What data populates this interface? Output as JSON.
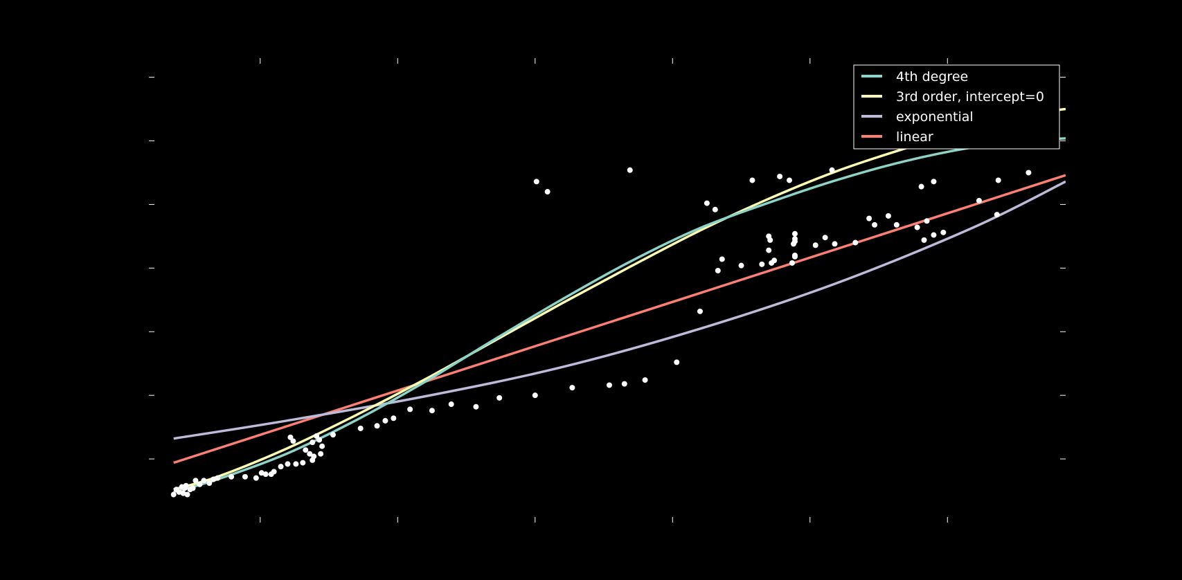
{
  "chart_data": {
    "type": "scatter",
    "title": "",
    "xlabel": "",
    "ylabel": "",
    "xlim": [
      0,
      66.7
    ],
    "ylim": [
      0,
      36.5
    ],
    "grid": false,
    "legend_position": "top-right",
    "colors": {
      "background": "#000000",
      "points": "#ffffff",
      "ticks": "#ffffff",
      "legend_border": "#ffffff"
    },
    "scatter": {
      "name": "",
      "color": "#ffffff",
      "points": [
        [
          1.8,
          2.2
        ],
        [
          2.0,
          2.6
        ],
        [
          2.2,
          2.4
        ],
        [
          2.4,
          2.8
        ],
        [
          2.5,
          2.3
        ],
        [
          2.6,
          2.7
        ],
        [
          2.7,
          2.9
        ],
        [
          2.8,
          2.2
        ],
        [
          3.0,
          2.6
        ],
        [
          3.2,
          2.7
        ],
        [
          3.4,
          3.3
        ],
        [
          3.7,
          3.0
        ],
        [
          4.0,
          3.3
        ],
        [
          4.4,
          3.1
        ],
        [
          4.7,
          3.4
        ],
        [
          5.0,
          3.5
        ],
        [
          6.0,
          3.6
        ],
        [
          7.0,
          3.6
        ],
        [
          7.8,
          3.5
        ],
        [
          8.2,
          3.9
        ],
        [
          8.5,
          3.8
        ],
        [
          8.9,
          3.8
        ],
        [
          9.1,
          4.0
        ],
        [
          9.6,
          4.4
        ],
        [
          10.1,
          4.6
        ],
        [
          10.3,
          6.7
        ],
        [
          10.5,
          6.4
        ],
        [
          10.7,
          4.6
        ],
        [
          11.2,
          4.7
        ],
        [
          11.4,
          5.7
        ],
        [
          11.7,
          5.4
        ],
        [
          11.9,
          6.3
        ],
        [
          11.9,
          4.9
        ],
        [
          12.0,
          5.2
        ],
        [
          12.2,
          6.8
        ],
        [
          12.4,
          6.5
        ],
        [
          12.5,
          5.4
        ],
        [
          12.6,
          6.0
        ],
        [
          13.4,
          6.9
        ],
        [
          15.4,
          7.4
        ],
        [
          16.6,
          7.6
        ],
        [
          17.2,
          8.0
        ],
        [
          17.8,
          8.2
        ],
        [
          19.0,
          8.9
        ],
        [
          20.6,
          8.8
        ],
        [
          22.0,
          9.3
        ],
        [
          23.8,
          9.1
        ],
        [
          25.5,
          9.8
        ],
        [
          28.1,
          10.0
        ],
        [
          28.2,
          26.8
        ],
        [
          29.0,
          26.0
        ],
        [
          30.8,
          10.6
        ],
        [
          33.5,
          10.8
        ],
        [
          34.6,
          10.9
        ],
        [
          35.0,
          27.7
        ],
        [
          36.1,
          11.2
        ],
        [
          38.4,
          12.6
        ],
        [
          40.1,
          16.6
        ],
        [
          40.6,
          25.1
        ],
        [
          41.2,
          24.6
        ],
        [
          41.4,
          19.8
        ],
        [
          41.7,
          20.7
        ],
        [
          43.1,
          20.2
        ],
        [
          43.9,
          26.9
        ],
        [
          44.6,
          20.3
        ],
        [
          45.1,
          21.4
        ],
        [
          45.1,
          22.5
        ],
        [
          45.2,
          22.2
        ],
        [
          45.3,
          20.4
        ],
        [
          45.5,
          20.6
        ],
        [
          45.9,
          27.2
        ],
        [
          46.6,
          26.9
        ],
        [
          46.8,
          20.4
        ],
        [
          46.9,
          21.9
        ],
        [
          47.0,
          20.9
        ],
        [
          47.0,
          21.0
        ],
        [
          47.0,
          22.1
        ],
        [
          47.0,
          22.7
        ],
        [
          47.0,
          22.3
        ],
        [
          48.5,
          21.8
        ],
        [
          49.2,
          22.4
        ],
        [
          49.7,
          27.7
        ],
        [
          49.9,
          21.9
        ],
        [
          51.4,
          22.0
        ],
        [
          52.4,
          23.9
        ],
        [
          52.8,
          23.4
        ],
        [
          53.8,
          24.1
        ],
        [
          54.4,
          23.4
        ],
        [
          55.9,
          23.2
        ],
        [
          56.2,
          26.4
        ],
        [
          56.4,
          22.2
        ],
        [
          56.6,
          23.7
        ],
        [
          57.1,
          22.6
        ],
        [
          57.1,
          26.8
        ],
        [
          57.8,
          22.8
        ],
        [
          60.4,
          25.3
        ],
        [
          61.7,
          24.2
        ],
        [
          61.8,
          26.9
        ],
        [
          64.0,
          27.5
        ]
      ]
    },
    "series": [
      {
        "name": "4th degree",
        "color": "#8dd3c7",
        "x": [
          1.8,
          5,
          10,
          15,
          20,
          25,
          30,
          35,
          40,
          45,
          50,
          55,
          60,
          64,
          66.7
        ],
        "y": [
          2.4,
          3.4,
          5.4,
          8.0,
          11.0,
          14.3,
          17.5,
          20.5,
          23.1,
          25.1,
          26.9,
          28.4,
          29.5,
          30.0,
          30.2
        ]
      },
      {
        "name": "3rd order, intercept=0",
        "color": "#ffffb3",
        "x": [
          1.8,
          5,
          10,
          15,
          20,
          25,
          30,
          35,
          40,
          45,
          50,
          55,
          60,
          64,
          66.7
        ],
        "y": [
          2.6,
          3.6,
          5.8,
          8.4,
          11.2,
          14.2,
          17.2,
          20.1,
          22.9,
          25.4,
          27.6,
          29.4,
          31.0,
          32.1,
          32.5
        ]
      },
      {
        "name": "exponential",
        "color": "#bebada",
        "x": [
          1.8,
          10,
          20,
          30,
          40,
          50,
          60,
          66.7
        ],
        "y": [
          6.6,
          8.0,
          9.9,
          12.2,
          15.2,
          18.8,
          23.2,
          26.8
        ]
      },
      {
        "name": "linear",
        "color": "#fb8072",
        "x": [
          1.8,
          66.7
        ],
        "y": [
          4.7,
          27.3
        ]
      }
    ],
    "x_ticks": [
      8.1,
      18.1,
      28.1,
      38.1,
      48.1,
      58.1
    ],
    "y_ticks": [
      5,
      10,
      15,
      20,
      25,
      30,
      35
    ]
  }
}
